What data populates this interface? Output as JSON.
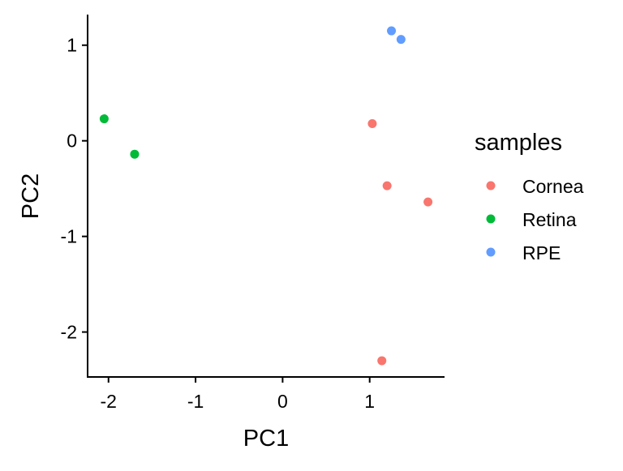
{
  "chart_data": {
    "type": "scatter",
    "xlabel": "PC1",
    "ylabel": "PC2",
    "xlim": [
      -2.24,
      1.86
    ],
    "ylim": [
      -2.47,
      1.32
    ],
    "xticks": [
      -2,
      -1,
      0,
      1
    ],
    "yticks": [
      1,
      0,
      -1,
      -2
    ],
    "grid": false,
    "legend": {
      "title": "samples",
      "position": "right"
    },
    "series": [
      {
        "name": "Cornea",
        "color": "#F8766D",
        "points": [
          [
            1.03,
            0.18
          ],
          [
            1.2,
            -0.47
          ],
          [
            1.67,
            -0.64
          ],
          [
            1.14,
            -2.3
          ]
        ]
      },
      {
        "name": "Retina",
        "color": "#00BA38",
        "points": [
          [
            -2.05,
            0.23
          ],
          [
            -1.7,
            -0.14
          ]
        ]
      },
      {
        "name": "RPE",
        "color": "#619CFF",
        "points": [
          [
            1.25,
            1.15
          ],
          [
            1.36,
            1.06
          ]
        ]
      }
    ]
  }
}
